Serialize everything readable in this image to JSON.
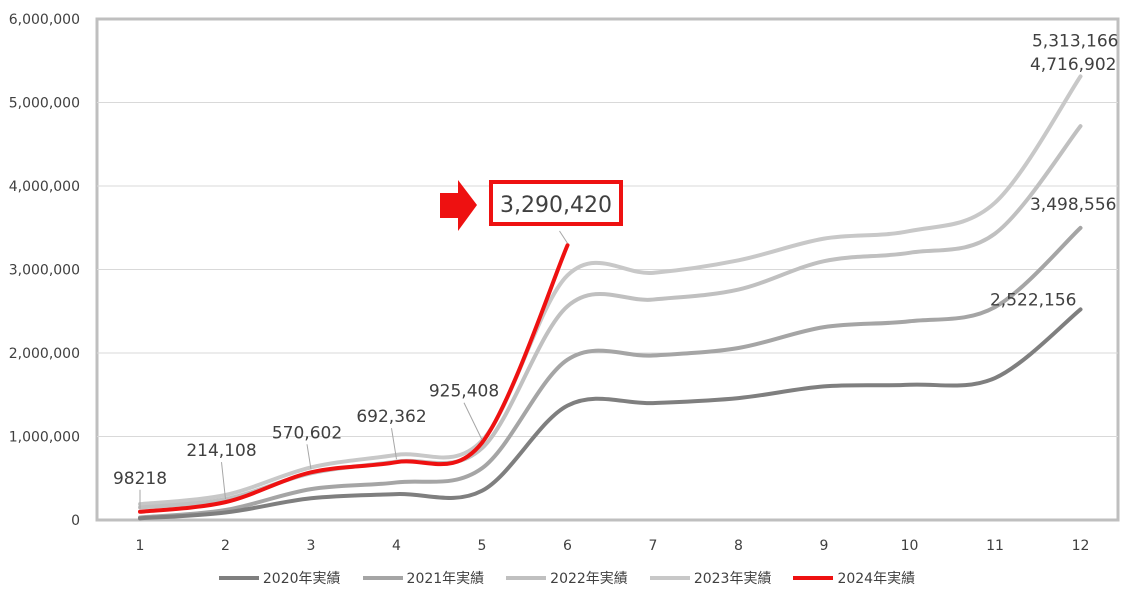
{
  "chart_data": {
    "type": "line",
    "x": [
      1,
      2,
      3,
      4,
      5,
      6,
      7,
      8,
      9,
      10,
      11,
      12
    ],
    "xtick_labels": [
      "1",
      "2",
      "3",
      "4",
      "5",
      "6",
      "7",
      "8",
      "9",
      "10",
      "11",
      "12"
    ],
    "ylim": [
      0,
      6000000
    ],
    "ytick_values": [
      0,
      1000000,
      2000000,
      3000000,
      4000000,
      5000000,
      6000000
    ],
    "ytick_labels": [
      "0",
      "1,000,000",
      "2,000,000",
      "3,000,000",
      "4,000,000",
      "5,000,000",
      "6,000,000"
    ],
    "grid": true,
    "legend_position": "bottom",
    "series": [
      {
        "name": "2020年実績",
        "color": "#7f7f7f",
        "values": [
          20000,
          90000,
          260000,
          310000,
          350000,
          1370000,
          1400000,
          1460000,
          1600000,
          1620000,
          1700000,
          2522156
        ]
      },
      {
        "name": "2021年実績",
        "color": "#a5a5a5",
        "values": [
          30000,
          120000,
          370000,
          450000,
          620000,
          1920000,
          1970000,
          2060000,
          2310000,
          2380000,
          2550000,
          3498556
        ]
      },
      {
        "name": "2022年実績",
        "color": "#c0c0c0",
        "values": [
          150000,
          250000,
          560000,
          700000,
          860000,
          2560000,
          2640000,
          2760000,
          3100000,
          3200000,
          3430000,
          4716902
        ]
      },
      {
        "name": "2023年実績",
        "color": "#c8c8c8",
        "values": [
          190000,
          300000,
          630000,
          780000,
          950000,
          2930000,
          2960000,
          3110000,
          3370000,
          3460000,
          3800000,
          5313166
        ]
      },
      {
        "name": "2024年実績",
        "color": "#ee1111",
        "values": [
          98218,
          214108,
          570602,
          692362,
          925408,
          3290420,
          null,
          null,
          null,
          null,
          null,
          null
        ]
      }
    ],
    "data_labels": [
      {
        "text": "98218",
        "series": 4,
        "index": 0
      },
      {
        "text": "214,108",
        "series": 4,
        "index": 1
      },
      {
        "text": "570,602",
        "series": 4,
        "index": 2
      },
      {
        "text": "692,362",
        "series": 4,
        "index": 3
      },
      {
        "text": "925,408",
        "series": 4,
        "index": 4
      },
      {
        "text": "2,522,156",
        "series": 0,
        "index": 11
      },
      {
        "text": "3,498,556",
        "series": 1,
        "index": 11
      },
      {
        "text": "4,716,902",
        "series": 2,
        "index": 11
      },
      {
        "text": "5,313,166",
        "series": 3,
        "index": 11
      }
    ],
    "callout": {
      "text": "3,290,420",
      "series": 4,
      "index": 5,
      "color": "#ee1111"
    }
  }
}
